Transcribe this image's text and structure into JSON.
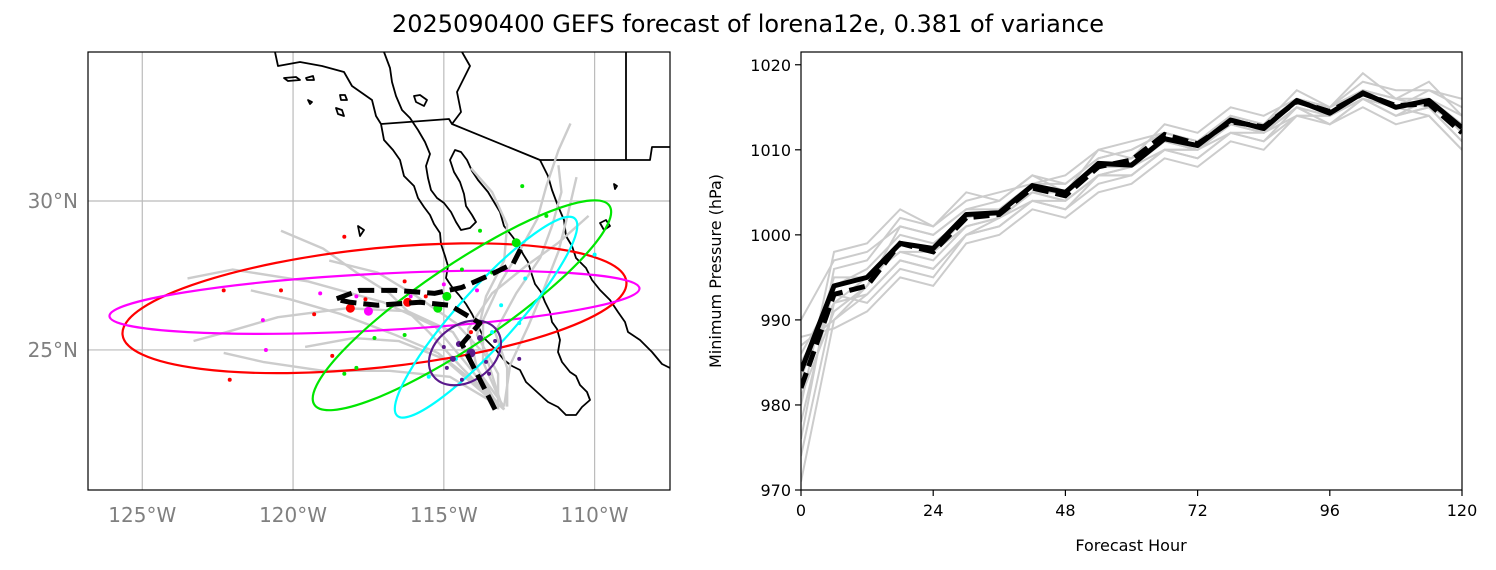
{
  "title": "2025090400 GEFS forecast of lorena12e, 0.381 of variance",
  "colors": {
    "ensemble": "#cccccc",
    "mean": "#000000",
    "coast": "#000000",
    "grid": "#bbbbbb",
    "ellipses": [
      "#ff0000",
      "#ff00ff",
      "#00e600",
      "#00ffff",
      "#5a1a8c"
    ]
  },
  "chart_data": [
    {
      "type": "map",
      "name": "track-map",
      "lon_range": [
        -126.8,
        -107.5
      ],
      "lat_range": [
        20.3,
        35.0
      ],
      "lon_ticks": [
        {
          "value": -125,
          "label": "125°W"
        },
        {
          "value": -120,
          "label": "120°W"
        },
        {
          "value": -115,
          "label": "115°W"
        },
        {
          "value": -110,
          "label": "110°W"
        }
      ],
      "lat_ticks": [
        {
          "value": 30,
          "label": "30°N"
        },
        {
          "value": 25,
          "label": "25°N"
        }
      ],
      "mean_track": [
        [
          -113.3,
          23.0
        ],
        [
          -113.9,
          24.2
        ],
        [
          -114.4,
          25.2
        ],
        [
          -113.8,
          25.9
        ],
        [
          -114.8,
          26.5
        ],
        [
          -115.8,
          26.6
        ],
        [
          -117.2,
          26.5
        ],
        [
          -118.1,
          26.6
        ],
        [
          -118.6,
          26.7
        ],
        [
          -117.8,
          27.0
        ],
        [
          -116.6,
          27.0
        ],
        [
          -115.3,
          26.9
        ],
        [
          -114.4,
          27.1
        ],
        [
          -113.5,
          27.5
        ],
        [
          -112.7,
          27.9
        ],
        [
          -112.4,
          28.5
        ]
      ],
      "ensemble_tracks": [
        [
          [
            -113.0,
            23.1
          ],
          [
            -114.0,
            24.5
          ],
          [
            -114.7,
            25.6
          ],
          [
            -116.2,
            26.3
          ],
          [
            -118.2,
            26.4
          ],
          [
            -120.5,
            26.1
          ],
          [
            -122.2,
            25.6
          ],
          [
            -123.3,
            25.3
          ]
        ],
        [
          [
            -113.2,
            23.2
          ],
          [
            -114.3,
            24.6
          ],
          [
            -115.3,
            25.8
          ],
          [
            -117.0,
            26.6
          ],
          [
            -119.5,
            27.3
          ],
          [
            -122.0,
            27.7
          ],
          [
            -123.5,
            27.4
          ]
        ],
        [
          [
            -113.0,
            23.0
          ],
          [
            -113.7,
            24.6
          ],
          [
            -113.7,
            26.0
          ],
          [
            -113.1,
            27.3
          ],
          [
            -112.5,
            28.3
          ],
          [
            -111.9,
            29.4
          ],
          [
            -111.6,
            30.5
          ],
          [
            -111.2,
            31.7
          ],
          [
            -110.8,
            32.6
          ]
        ],
        [
          [
            -113.1,
            23.1
          ],
          [
            -114.4,
            24.4
          ],
          [
            -115.5,
            25.6
          ],
          [
            -116.8,
            26.9
          ],
          [
            -117.9,
            27.6
          ],
          [
            -119.0,
            28.4
          ],
          [
            -120.4,
            29.0
          ]
        ],
        [
          [
            -113.3,
            23.2
          ],
          [
            -114.8,
            24.1
          ],
          [
            -116.8,
            24.3
          ],
          [
            -119.0,
            24.3
          ],
          [
            -121.0,
            24.6
          ],
          [
            -122.3,
            24.9
          ]
        ],
        [
          [
            -112.9,
            23.1
          ],
          [
            -112.9,
            24.4
          ],
          [
            -113.3,
            25.6
          ],
          [
            -112.6,
            26.9
          ],
          [
            -111.8,
            28.1
          ],
          [
            -111.4,
            29.2
          ],
          [
            -111.1,
            30.3
          ],
          [
            -111.2,
            31.2
          ]
        ],
        [
          [
            -113.2,
            23.0
          ],
          [
            -113.2,
            24.2
          ],
          [
            -113.9,
            25.5
          ],
          [
            -113.6,
            26.8
          ],
          [
            -113.0,
            28.0
          ],
          [
            -112.9,
            29.2
          ],
          [
            -113.4,
            30.3
          ],
          [
            -114.1,
            31.1
          ]
        ],
        [
          [
            -113.0,
            23.1
          ],
          [
            -112.8,
            24.5
          ],
          [
            -112.2,
            25.8
          ],
          [
            -111.7,
            27.0
          ],
          [
            -111.2,
            28.3
          ],
          [
            -110.9,
            29.5
          ],
          [
            -110.6,
            30.8
          ]
        ],
        [
          [
            -113.4,
            23.3
          ],
          [
            -115.0,
            24.7
          ],
          [
            -116.5,
            25.3
          ],
          [
            -118.0,
            25.4
          ],
          [
            -119.6,
            25.1
          ]
        ],
        [
          [
            -113.1,
            23.2
          ],
          [
            -113.6,
            24.8
          ],
          [
            -114.6,
            25.9
          ],
          [
            -115.9,
            26.8
          ],
          [
            -117.2,
            27.6
          ],
          [
            -118.8,
            28.0
          ]
        ],
        [
          [
            -113.2,
            23.1
          ],
          [
            -113.9,
            24.4
          ],
          [
            -114.2,
            25.7
          ],
          [
            -113.4,
            26.9
          ],
          [
            -112.3,
            27.8
          ],
          [
            -111.2,
            28.6
          ],
          [
            -110.2,
            29.5
          ]
        ],
        [
          [
            -113.0,
            23.0
          ],
          [
            -114.2,
            24.1
          ],
          [
            -115.2,
            24.9
          ],
          [
            -116.6,
            25.5
          ],
          [
            -118.4,
            26.2
          ],
          [
            -120.1,
            26.7
          ],
          [
            -121.4,
            27.0
          ]
        ]
      ],
      "points": [
        {
          "c": 0,
          "lon": -118.1,
          "lat": 26.4,
          "s": 4.5
        },
        {
          "c": 0,
          "lon": -116.2,
          "lat": 26.6,
          "s": 4.5
        },
        {
          "c": 0,
          "lon": -122.3,
          "lat": 27.0,
          "s": 2
        },
        {
          "c": 0,
          "lon": -119.3,
          "lat": 26.2,
          "s": 2
        },
        {
          "c": 0,
          "lon": -118.7,
          "lat": 24.8,
          "s": 2
        },
        {
          "c": 0,
          "lon": -115.6,
          "lat": 26.8,
          "s": 2
        },
        {
          "c": 0,
          "lon": -122.1,
          "lat": 24.0,
          "s": 2
        },
        {
          "c": 0,
          "lon": -118.3,
          "lat": 28.8,
          "s": 2
        },
        {
          "c": 0,
          "lon": -116.3,
          "lat": 27.3,
          "s": 2
        },
        {
          "c": 0,
          "lon": -114.1,
          "lat": 25.6,
          "s": 2
        },
        {
          "c": 0,
          "lon": -117.6,
          "lat": 26.7,
          "s": 2
        },
        {
          "c": 0,
          "lon": -120.4,
          "lat": 27.0,
          "s": 2
        },
        {
          "c": 1,
          "lon": -117.5,
          "lat": 26.3,
          "s": 4.5
        },
        {
          "c": 1,
          "lon": -121.0,
          "lat": 26.0,
          "s": 2
        },
        {
          "c": 1,
          "lon": -120.9,
          "lat": 25.0,
          "s": 2
        },
        {
          "c": 1,
          "lon": -119.1,
          "lat": 26.9,
          "s": 2
        },
        {
          "c": 1,
          "lon": -115.0,
          "lat": 27.2,
          "s": 2
        },
        {
          "c": 1,
          "lon": -113.9,
          "lat": 27.0,
          "s": 2
        },
        {
          "c": 1,
          "lon": -116.1,
          "lat": 26.8,
          "s": 2
        },
        {
          "c": 1,
          "lon": -117.9,
          "lat": 26.8,
          "s": 2
        },
        {
          "c": 2,
          "lon": -114.9,
          "lat": 26.8,
          "s": 4.5
        },
        {
          "c": 2,
          "lon": -115.2,
          "lat": 26.4,
          "s": 4.5
        },
        {
          "c": 2,
          "lon": -112.6,
          "lat": 28.6,
          "s": 4.5
        },
        {
          "c": 2,
          "lon": -112.4,
          "lat": 30.5,
          "s": 2
        },
        {
          "c": 2,
          "lon": -111.6,
          "lat": 29.5,
          "s": 2
        },
        {
          "c": 2,
          "lon": -113.8,
          "lat": 29.0,
          "s": 2
        },
        {
          "c": 2,
          "lon": -116.3,
          "lat": 25.5,
          "s": 2
        },
        {
          "c": 2,
          "lon": -117.3,
          "lat": 25.4,
          "s": 2
        },
        {
          "c": 2,
          "lon": -117.9,
          "lat": 24.4,
          "s": 2
        },
        {
          "c": 2,
          "lon": -118.3,
          "lat": 24.2,
          "s": 2
        },
        {
          "c": 2,
          "lon": -114.4,
          "lat": 27.7,
          "s": 2
        },
        {
          "c": 2,
          "lon": -113.4,
          "lat": 27.6,
          "s": 2
        },
        {
          "c": 3,
          "lon": -110.0,
          "lat": 28.2,
          "s": 2
        },
        {
          "c": 3,
          "lon": -112.3,
          "lat": 27.4,
          "s": 2
        },
        {
          "c": 3,
          "lon": -113.1,
          "lat": 26.5,
          "s": 2
        },
        {
          "c": 3,
          "lon": -114.6,
          "lat": 24.7,
          "s": 2
        },
        {
          "c": 3,
          "lon": -115.5,
          "lat": 24.1,
          "s": 2
        },
        {
          "c": 3,
          "lon": -113.4,
          "lat": 25.6,
          "s": 2
        },
        {
          "c": 3,
          "lon": -112.5,
          "lat": 25.9,
          "s": 2
        },
        {
          "c": 4,
          "lon": -114.1,
          "lat": 24.9,
          "s": 4.5
        },
        {
          "c": 4,
          "lon": -114.5,
          "lat": 25.2,
          "s": 3
        },
        {
          "c": 4,
          "lon": -113.8,
          "lat": 25.4,
          "s": 3
        },
        {
          "c": 4,
          "lon": -114.7,
          "lat": 24.7,
          "s": 3
        },
        {
          "c": 4,
          "lon": -113.6,
          "lat": 24.6,
          "s": 2
        },
        {
          "c": 4,
          "lon": -114.9,
          "lat": 24.4,
          "s": 2
        },
        {
          "c": 4,
          "lon": -115.0,
          "lat": 25.1,
          "s": 2
        },
        {
          "c": 4,
          "lon": -114.4,
          "lat": 24.0,
          "s": 2
        },
        {
          "c": 4,
          "lon": -113.3,
          "lat": 25.3,
          "s": 2
        },
        {
          "c": 4,
          "lon": -112.5,
          "lat": 24.7,
          "s": 2
        },
        {
          "c": 4,
          "lon": -113.5,
          "lat": 24.2,
          "s": 2
        }
      ],
      "ellipses": [
        {
          "c": 0,
          "lon": -117.3,
          "lat": 26.4,
          "rx_deg": 8.4,
          "ry_deg": 2.0,
          "angle": -6
        },
        {
          "c": 1,
          "lon": -117.3,
          "lat": 26.6,
          "rx_deg": 8.8,
          "ry_deg": 0.95,
          "angle": -3
        },
        {
          "c": 2,
          "lon": -114.4,
          "lat": 26.5,
          "rx_deg": 5.9,
          "ry_deg": 1.35,
          "angle": -34
        },
        {
          "c": 3,
          "lon": -113.6,
          "lat": 26.1,
          "rx_deg": 4.4,
          "ry_deg": 0.95,
          "angle": -48
        },
        {
          "c": 4,
          "lon": -114.3,
          "lat": 24.9,
          "rx_deg": 1.3,
          "ry_deg": 0.95,
          "angle": -35
        }
      ]
    },
    {
      "type": "line",
      "name": "pressure-chart",
      "xlabel": "Forecast Hour",
      "ylabel": "Minimum Pressure (hPa)",
      "xlim": [
        0,
        120
      ],
      "ylim": [
        970,
        1021.5
      ],
      "xticks": [
        0,
        24,
        48,
        72,
        96,
        120
      ],
      "yticks": [
        970,
        980,
        990,
        1000,
        1010,
        1020
      ],
      "x": [
        0,
        6,
        12,
        18,
        24,
        30,
        36,
        42,
        48,
        54,
        60,
        66,
        72,
        78,
        84,
        90,
        96,
        102,
        108,
        114,
        120
      ],
      "mean": [
        984,
        994,
        995,
        999,
        998.4,
        1002.4,
        1002.6,
        1005.8,
        1005.0,
        1008.4,
        1008.2,
        1011.3,
        1010.5,
        1013.5,
        1012.5,
        1015.8,
        1014.3,
        1016.7,
        1015.0,
        1015.8,
        1012.6
      ],
      "median": [
        982,
        993,
        994,
        999,
        998.0,
        1002.0,
        1002.4,
        1005.5,
        1004.6,
        1008.0,
        1008.8,
        1011.8,
        1010.7,
        1013.3,
        1012.7,
        1015.7,
        1014.5,
        1016.6,
        1015.2,
        1015.4,
        1012.0
      ],
      "members": [
        [
          971,
          990,
          994,
          1001,
          1000,
          1003,
          1004,
          1007,
          1006,
          1009,
          1010,
          1012,
          1011,
          1014,
          1013,
          1017,
          1015,
          1019,
          1016,
          1018,
          1014
        ],
        [
          976,
          996,
          997,
          1002,
          1001,
          1004,
          1005,
          1006,
          1007,
          1010,
          1009,
          1013,
          1012,
          1015,
          1014,
          1016,
          1015,
          1018,
          1017,
          1017,
          1016
        ],
        [
          980,
          998,
          999,
          1003,
          1001,
          1005,
          1004,
          1007,
          1005,
          1010,
          1011,
          1012,
          1011,
          1014,
          1012,
          1016,
          1015,
          1017,
          1016,
          1016,
          1013
        ],
        [
          985,
          992,
          993,
          997,
          996,
          1000,
          1001,
          1004,
          1003,
          1006,
          1007,
          1010,
          1009,
          1012,
          1011,
          1015,
          1013,
          1016,
          1014,
          1015,
          1011
        ],
        [
          988,
          989,
          991,
          995,
          994,
          999,
          1000,
          1003,
          1002,
          1005,
          1006,
          1009,
          1008,
          1011,
          1010,
          1014,
          1013,
          1015,
          1013,
          1014,
          1010
        ],
        [
          978,
          994,
          996,
          1000,
          999,
          1002,
          1003,
          1006,
          1005,
          1008,
          1008,
          1011,
          1010,
          1013,
          1012,
          1015,
          1014,
          1016,
          1015,
          1016,
          1012
        ],
        [
          983,
          995,
          995,
          998,
          997,
          1001,
          1002,
          1005,
          1004,
          1007,
          1008,
          1010,
          1010,
          1013,
          1012,
          1015,
          1014,
          1017,
          1016,
          1015,
          1013
        ],
        [
          986,
          993,
          992,
          996,
          995,
          1000,
          1001,
          1004,
          1004,
          1007,
          1007,
          1010,
          1009,
          1012,
          1011,
          1014,
          1014,
          1016,
          1014,
          1015,
          1011
        ],
        [
          981,
          991,
          994,
          999,
          998,
          1002,
          1003,
          1005,
          1005,
          1008,
          1009,
          1011,
          1010,
          1013,
          1013,
          1016,
          1015,
          1017,
          1015,
          1016,
          1014
        ],
        [
          990,
          997,
          998,
          1001,
          1000,
          1003,
          1003,
          1006,
          1006,
          1009,
          1010,
          1012,
          1011,
          1014,
          1013,
          1016,
          1014,
          1017,
          1015,
          1017,
          1015
        ],
        [
          974,
          992,
          995,
          998,
          998,
          1001,
          1002,
          1005,
          1004,
          1007,
          1008,
          1011,
          1010,
          1013,
          1012,
          1015,
          1013,
          1016,
          1014,
          1016,
          1012
        ],
        [
          987,
          990,
          993,
          997,
          996,
          1000,
          1002,
          1004,
          1003,
          1007,
          1007,
          1010,
          1010,
          1012,
          1012,
          1014,
          1014,
          1016,
          1015,
          1014,
          1010
        ]
      ]
    }
  ]
}
